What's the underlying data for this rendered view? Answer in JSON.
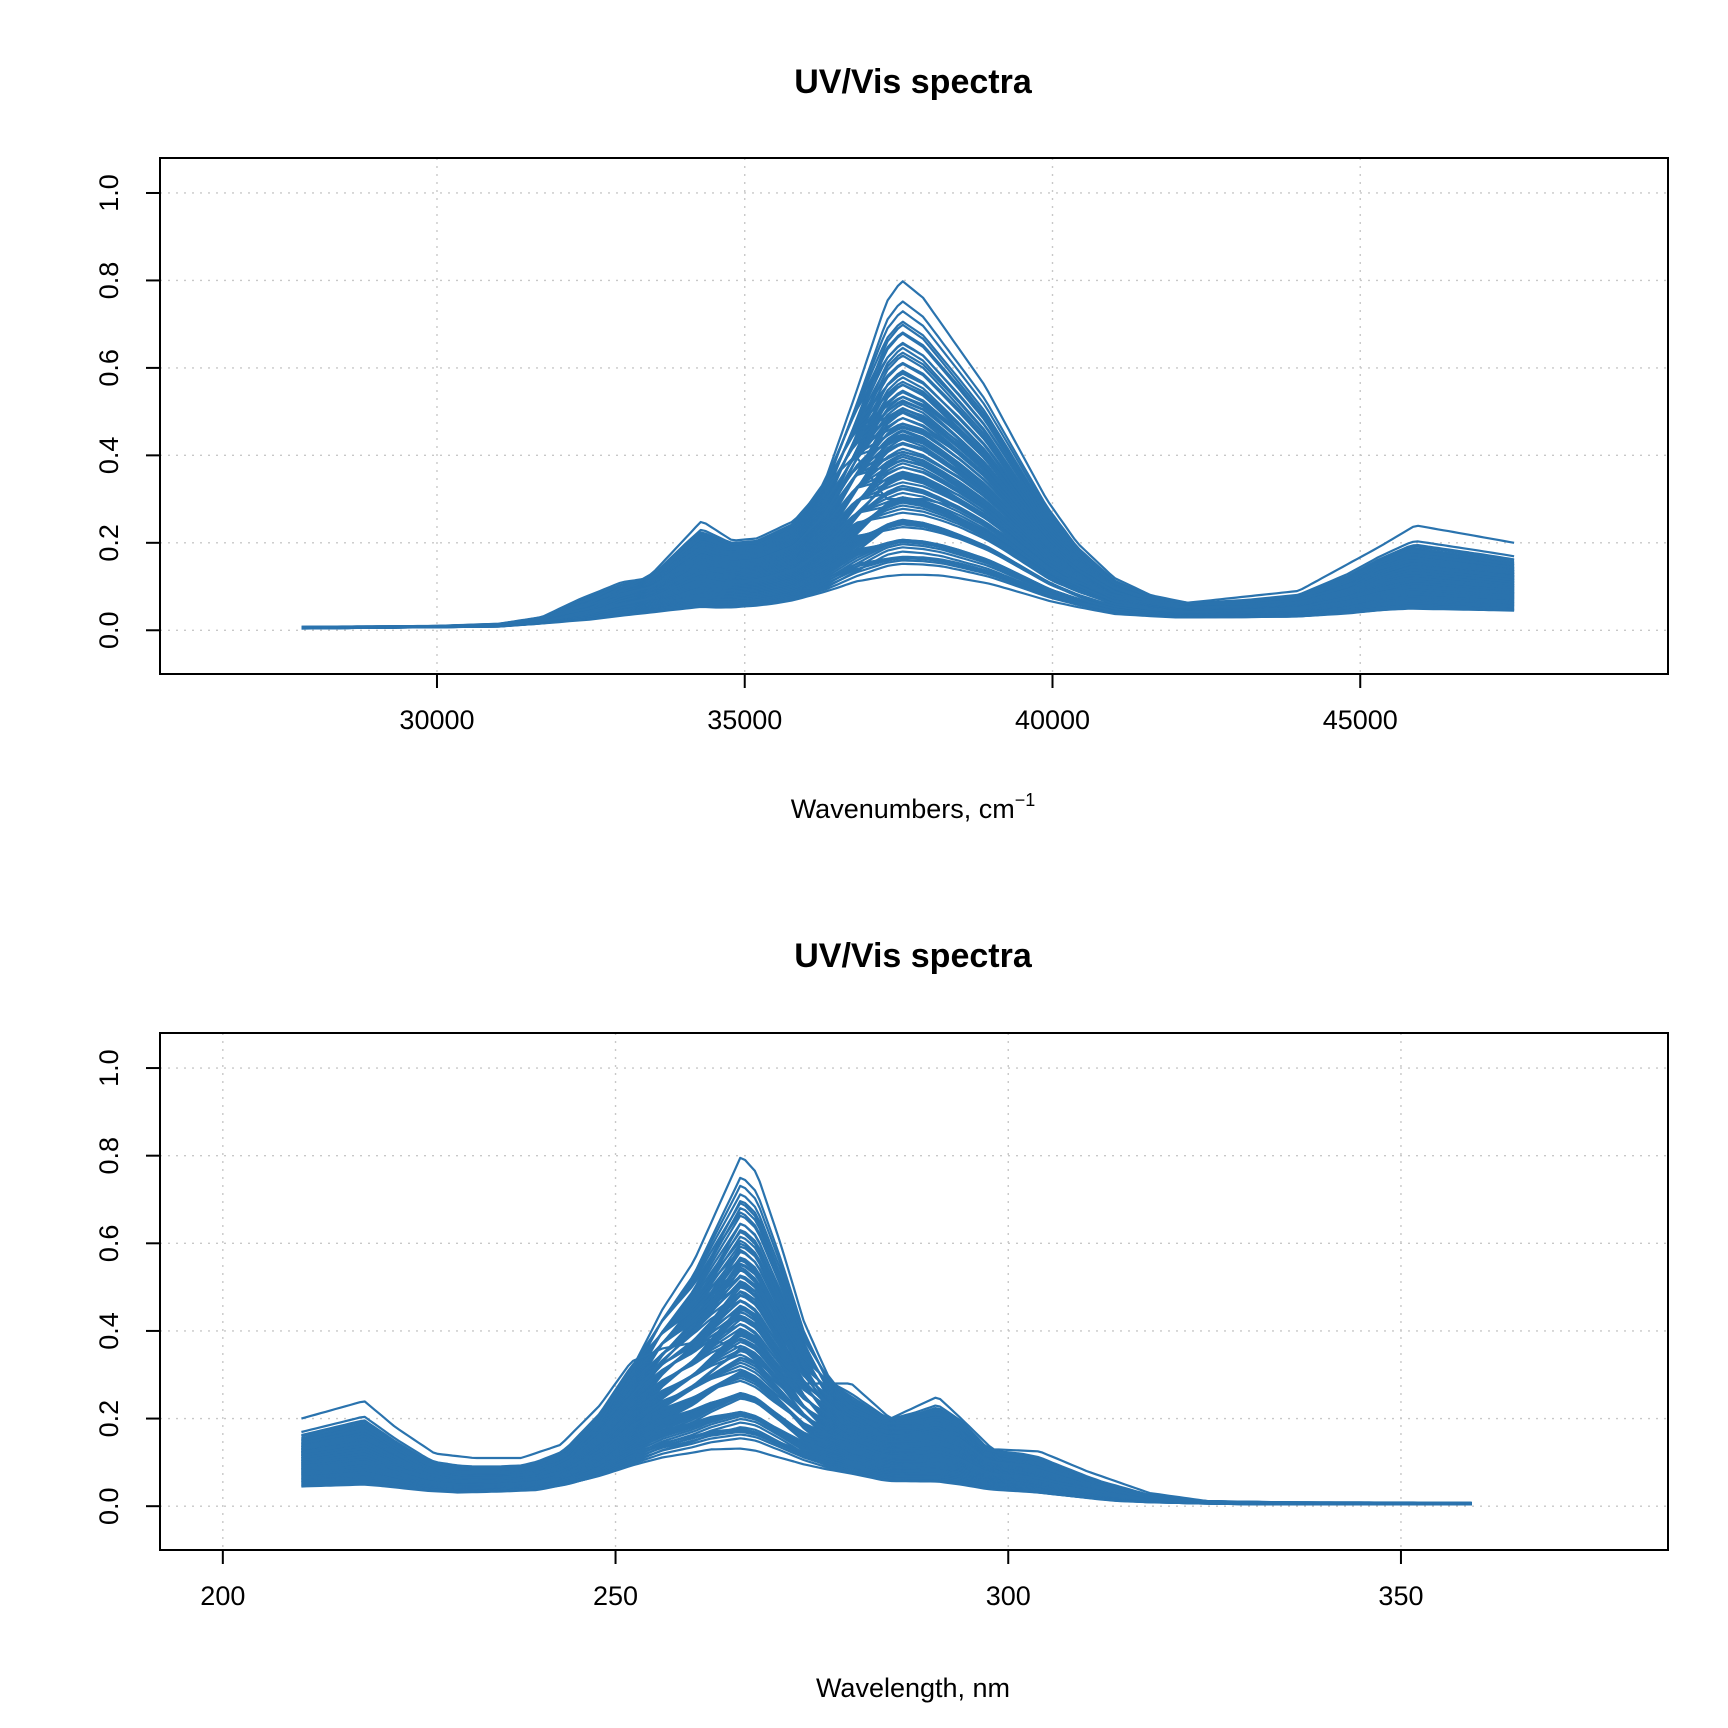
{
  "series_color": "#2a73ae",
  "chart_data": [
    {
      "type": "line",
      "title": "UV/Vis spectra",
      "xlabel": "Wavenumbers, cm",
      "xlabel_superscript": "−1",
      "ylabel": "",
      "xlim": [
        25500,
        50000
      ],
      "ylim": [
        -0.1,
        1.08
      ],
      "x_ticks": [
        "30000",
        "35000",
        "40000",
        "45000"
      ],
      "y_ticks": [
        "0.0",
        "0.2",
        "0.4",
        "0.6",
        "0.8",
        "1.0"
      ],
      "grid": true,
      "x_range": [
        27800,
        47500
      ],
      "peak_shape": [
        [
          27800,
          0.008
        ],
        [
          29000,
          0.009
        ],
        [
          30000,
          0.01
        ],
        [
          31000,
          0.015
        ],
        [
          31700,
          0.03
        ],
        [
          32300,
          0.07
        ],
        [
          33000,
          0.11
        ],
        [
          33500,
          0.12
        ],
        [
          34000,
          0.18
        ],
        [
          34300,
          0.21
        ],
        [
          34700,
          0.195
        ],
        [
          35200,
          0.2
        ],
        [
          35800,
          0.24
        ],
        [
          36300,
          0.34
        ],
        [
          36800,
          0.54
        ],
        [
          37300,
          0.75
        ],
        [
          37550,
          0.8
        ],
        [
          37900,
          0.76
        ],
        [
          38400,
          0.66
        ],
        [
          38900,
          0.56
        ],
        [
          39400,
          0.43
        ],
        [
          39900,
          0.3
        ],
        [
          40400,
          0.2
        ],
        [
          41000,
          0.12
        ],
        [
          41600,
          0.08
        ],
        [
          42300,
          0.06
        ],
        [
          43200,
          0.06
        ],
        [
          44000,
          0.07
        ],
        [
          44800,
          0.1
        ],
        [
          45300,
          0.14
        ],
        [
          45800,
          0.16
        ],
        [
          46400,
          0.15
        ],
        [
          47000,
          0.14
        ],
        [
          47500,
          0.13
        ]
      ],
      "baseline_shape": [
        [
          27800,
          0.004
        ],
        [
          31000,
          0.008
        ],
        [
          32500,
          0.02
        ],
        [
          33500,
          0.03
        ],
        [
          34500,
          0.03
        ],
        [
          35500,
          0.04
        ],
        [
          36500,
          0.06
        ],
        [
          37300,
          0.08
        ],
        [
          38200,
          0.085
        ],
        [
          39000,
          0.075
        ],
        [
          40000,
          0.05
        ],
        [
          41000,
          0.03
        ],
        [
          42000,
          0.025
        ],
        [
          44000,
          0.025
        ],
        [
          45500,
          0.03
        ],
        [
          47500,
          0.03
        ]
      ],
      "sideband_shape": [
        [
          27800,
          0.004
        ],
        [
          31000,
          0.01
        ],
        [
          32500,
          0.05
        ],
        [
          33500,
          0.13
        ],
        [
          34300,
          0.25
        ],
        [
          34800,
          0.205
        ],
        [
          35200,
          0.21
        ],
        [
          35800,
          0.25
        ],
        [
          36300,
          0.33
        ],
        [
          36800,
          0.4
        ],
        [
          37300,
          0.3
        ],
        [
          37900,
          0.3
        ],
        [
          38500,
          0.28
        ],
        [
          39200,
          0.22
        ],
        [
          40000,
          0.13
        ],
        [
          41000,
          0.08
        ],
        [
          42000,
          0.06
        ],
        [
          44000,
          0.09
        ],
        [
          45300,
          0.19
        ],
        [
          45900,
          0.24
        ],
        [
          46500,
          0.225
        ],
        [
          47500,
          0.2
        ]
      ],
      "max_peak": 0.8,
      "spectrum_count": 110
    },
    {
      "type": "line",
      "title": "UV/Vis spectra",
      "xlabel": "Wavelength, nm",
      "ylabel": "",
      "xlim": [
        192,
        384
      ],
      "ylim": [
        -0.1,
        1.08
      ],
      "x_ticks": [
        "200",
        "250",
        "300",
        "350"
      ],
      "y_ticks": [
        "0.0",
        "0.2",
        "0.4",
        "0.6",
        "0.8",
        "1.0"
      ],
      "grid": true,
      "x_range": [
        210,
        359
      ],
      "peak_shape": [
        [
          210,
          0.13
        ],
        [
          214,
          0.145
        ],
        [
          218,
          0.16
        ],
        [
          222,
          0.12
        ],
        [
          226,
          0.08
        ],
        [
          230,
          0.065
        ],
        [
          235,
          0.065
        ],
        [
          240,
          0.075
        ],
        [
          244,
          0.11
        ],
        [
          248,
          0.19
        ],
        [
          252,
          0.31
        ],
        [
          256,
          0.45
        ],
        [
          260,
          0.56
        ],
        [
          263,
          0.68
        ],
        [
          266,
          0.8
        ],
        [
          268,
          0.76
        ],
        [
          271,
          0.6
        ],
        [
          274,
          0.42
        ],
        [
          277,
          0.3
        ],
        [
          280,
          0.23
        ],
        [
          284,
          0.2
        ],
        [
          288,
          0.2
        ],
        [
          291,
          0.21
        ],
        [
          294,
          0.19
        ],
        [
          297,
          0.13
        ],
        [
          302,
          0.11
        ],
        [
          306,
          0.08
        ],
        [
          312,
          0.04
        ],
        [
          318,
          0.02
        ],
        [
          324,
          0.012
        ],
        [
          335,
          0.009
        ],
        [
          359,
          0.008
        ]
      ],
      "baseline_shape": [
        [
          210,
          0.03
        ],
        [
          220,
          0.03
        ],
        [
          230,
          0.025
        ],
        [
          240,
          0.03
        ],
        [
          248,
          0.05
        ],
        [
          256,
          0.075
        ],
        [
          262,
          0.085
        ],
        [
          268,
          0.08
        ],
        [
          276,
          0.06
        ],
        [
          284,
          0.04
        ],
        [
          294,
          0.03
        ],
        [
          304,
          0.02
        ],
        [
          314,
          0.008
        ],
        [
          330,
          0.004
        ],
        [
          359,
          0.004
        ]
      ],
      "sideband_shape": [
        [
          210,
          0.2
        ],
        [
          214,
          0.22
        ],
        [
          218,
          0.24
        ],
        [
          222,
          0.18
        ],
        [
          227,
          0.12
        ],
        [
          232,
          0.11
        ],
        [
          238,
          0.11
        ],
        [
          243,
          0.14
        ],
        [
          248,
          0.23
        ],
        [
          252,
          0.33
        ],
        [
          256,
          0.36
        ],
        [
          262,
          0.38
        ],
        [
          266,
          0.36
        ],
        [
          270,
          0.3
        ],
        [
          274,
          0.28
        ],
        [
          280,
          0.28
        ],
        [
          285,
          0.2
        ],
        [
          291,
          0.25
        ],
        [
          294,
          0.2
        ],
        [
          298,
          0.13
        ],
        [
          304,
          0.125
        ],
        [
          310,
          0.08
        ],
        [
          318,
          0.03
        ],
        [
          326,
          0.01
        ],
        [
          340,
          0.006
        ],
        [
          359,
          0.004
        ]
      ],
      "max_peak": 0.8,
      "spectrum_count": 110
    }
  ]
}
